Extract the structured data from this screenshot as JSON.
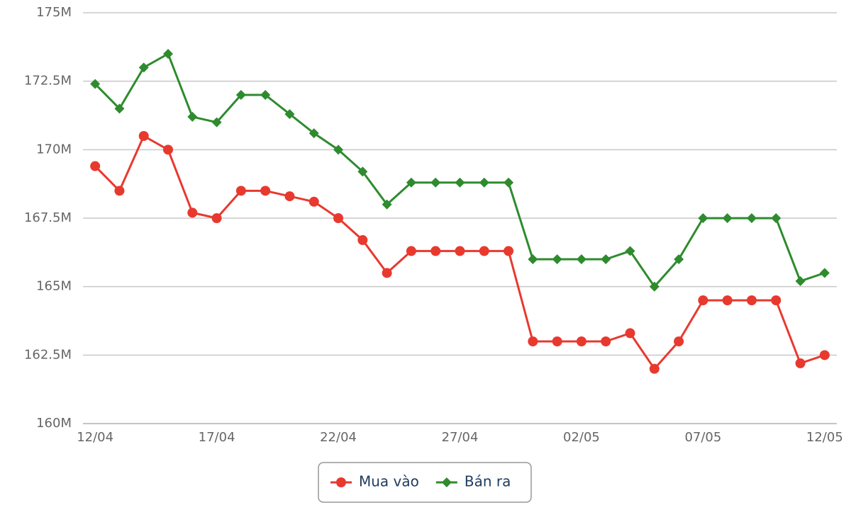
{
  "chart_data": {
    "type": "line",
    "categories": [
      "12/04",
      null,
      null,
      null,
      null,
      "17/04",
      null,
      null,
      null,
      null,
      "22/04",
      null,
      null,
      null,
      null,
      "27/04",
      null,
      null,
      null,
      null,
      "02/05",
      null,
      null,
      null,
      null,
      "07/05",
      null,
      null,
      null,
      null,
      "12/05"
    ],
    "series": [
      {
        "name": "Mua vào",
        "color": "#e8392f",
        "marker": "circle",
        "values": [
          169.4,
          168.5,
          170.5,
          170.0,
          167.7,
          167.5,
          168.5,
          168.5,
          168.3,
          168.1,
          167.5,
          166.7,
          165.5,
          166.3,
          166.3,
          166.3,
          166.3,
          166.3,
          163.0,
          163.0,
          163.0,
          163.0,
          163.3,
          162.0,
          163.0,
          164.5,
          164.5,
          164.5,
          164.5,
          162.2,
          162.5
        ]
      },
      {
        "name": "Bán ra",
        "color": "#2e8b2e",
        "marker": "diamond",
        "values": [
          172.4,
          171.5,
          173.0,
          173.5,
          171.2,
          171.0,
          172.0,
          172.0,
          171.3,
          170.6,
          170.0,
          169.2,
          168.0,
          168.8,
          168.8,
          168.8,
          168.8,
          168.8,
          166.0,
          166.0,
          166.0,
          166.0,
          166.3,
          165.0,
          166.0,
          167.5,
          167.5,
          167.5,
          167.5,
          165.2,
          165.5
        ]
      }
    ],
    "ylim": [
      160,
      175
    ],
    "yticks": [
      {
        "value": 160,
        "label": "160M"
      },
      {
        "value": 162.5,
        "label": "162.5M"
      },
      {
        "value": 165,
        "label": "165M"
      },
      {
        "value": 167.5,
        "label": "167.5M"
      },
      {
        "value": 170,
        "label": "170M"
      },
      {
        "value": 172.5,
        "label": "172.5M"
      },
      {
        "value": 175,
        "label": "175M"
      }
    ],
    "grid": true,
    "legend": "bottom"
  }
}
